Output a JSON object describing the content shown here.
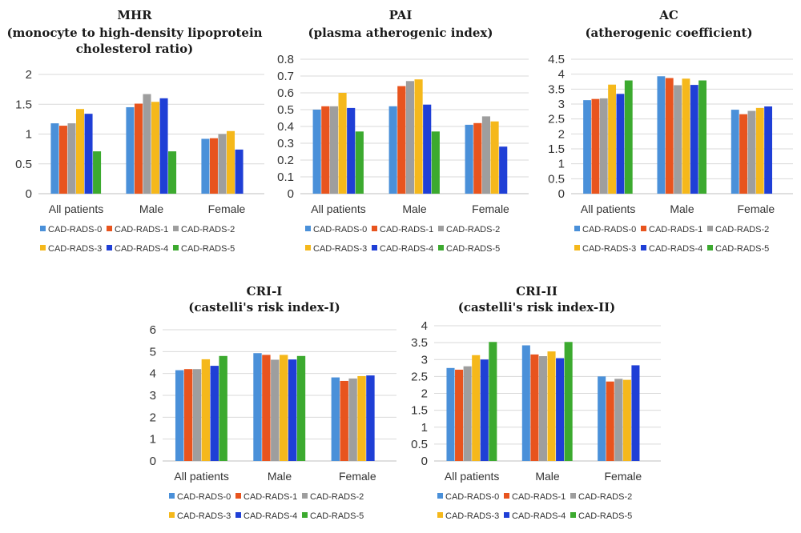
{
  "chart_data": [
    {
      "type": "bar",
      "title": "MHR",
      "subtitle": "(monocyte to high-density lipoprotein cholesterol ratio)",
      "categories": [
        "All patients",
        "Male",
        "Female"
      ],
      "ylim": [
        0,
        2
      ],
      "yticks": [
        "0",
        "0.5",
        "1",
        "1.5",
        "2"
      ],
      "grid": true,
      "legend_position": "bottom",
      "series": [
        {
          "name": "CAD-RADS-0",
          "color": "#4a90d9",
          "values": [
            1.18,
            1.45,
            0.92
          ]
        },
        {
          "name": "CAD-RADS-1",
          "color": "#e8541e",
          "values": [
            1.14,
            1.51,
            0.93
          ]
        },
        {
          "name": "CAD-RADS-2",
          "color": "#9e9e9e",
          "values": [
            1.18,
            1.67,
            1.0
          ]
        },
        {
          "name": "CAD-RADS-3",
          "color": "#f5b81b",
          "values": [
            1.42,
            1.54,
            1.05
          ]
        },
        {
          "name": "CAD-RADS-4",
          "color": "#1f3fd6",
          "values": [
            1.34,
            1.6,
            0.74
          ]
        },
        {
          "name": "CAD-RADS-5",
          "color": "#3caa2f",
          "values": [
            0.71,
            0.71,
            0.0
          ]
        }
      ]
    },
    {
      "type": "bar",
      "title": "PAI",
      "subtitle": "(plasma atherogenic index)",
      "categories": [
        "All patients",
        "Male",
        "Female"
      ],
      "ylim": [
        0,
        0.8
      ],
      "yticks": [
        "0",
        "0.1",
        "0.2",
        "0.3",
        "0.4",
        "0.5",
        "0.6",
        "0.7",
        "0.8"
      ],
      "grid": true,
      "legend_position": "bottom",
      "series": [
        {
          "name": "CAD-RADS-0",
          "color": "#4a90d9",
          "values": [
            0.5,
            0.52,
            0.41
          ]
        },
        {
          "name": "CAD-RADS-1",
          "color": "#e8541e",
          "values": [
            0.52,
            0.64,
            0.42
          ]
        },
        {
          "name": "CAD-RADS-2",
          "color": "#9e9e9e",
          "values": [
            0.52,
            0.67,
            0.46
          ]
        },
        {
          "name": "CAD-RADS-3",
          "color": "#f5b81b",
          "values": [
            0.6,
            0.68,
            0.43
          ]
        },
        {
          "name": "CAD-RADS-4",
          "color": "#1f3fd6",
          "values": [
            0.51,
            0.53,
            0.28
          ]
        },
        {
          "name": "CAD-RADS-5",
          "color": "#3caa2f",
          "values": [
            0.37,
            0.37,
            0.0
          ]
        }
      ]
    },
    {
      "type": "bar",
      "title": "AC",
      "subtitle": "(atherogenic coefficient)",
      "categories": [
        "All patients",
        "Male",
        "Female"
      ],
      "ylim": [
        0,
        4.5
      ],
      "yticks": [
        "0",
        "0.5",
        "1",
        "1.5",
        "2",
        "2.5",
        "3",
        "3.5",
        "4",
        "4.5"
      ],
      "grid": true,
      "legend_position": "bottom",
      "series": [
        {
          "name": "CAD-RADS-0",
          "color": "#4a90d9",
          "values": [
            3.13,
            3.93,
            2.81
          ]
        },
        {
          "name": "CAD-RADS-1",
          "color": "#e8541e",
          "values": [
            3.17,
            3.87,
            2.66
          ]
        },
        {
          "name": "CAD-RADS-2",
          "color": "#9e9e9e",
          "values": [
            3.19,
            3.63,
            2.77
          ]
        },
        {
          "name": "CAD-RADS-3",
          "color": "#f5b81b",
          "values": [
            3.65,
            3.85,
            2.87
          ]
        },
        {
          "name": "CAD-RADS-4",
          "color": "#1f3fd6",
          "values": [
            3.34,
            3.64,
            2.92
          ]
        },
        {
          "name": "CAD-RADS-5",
          "color": "#3caa2f",
          "values": [
            3.79,
            3.79,
            0.0
          ]
        }
      ]
    },
    {
      "type": "bar",
      "title": "CRI-I",
      "subtitle": "(castelli's risk index-I)",
      "categories": [
        "All patients",
        "Male",
        "Female"
      ],
      "ylim": [
        0,
        6
      ],
      "yticks": [
        "0",
        "1",
        "2",
        "3",
        "4",
        "5",
        "6"
      ],
      "grid": true,
      "legend_position": "bottom",
      "series": [
        {
          "name": "CAD-RADS-0",
          "color": "#4a90d9",
          "values": [
            4.15,
            4.93,
            3.82
          ]
        },
        {
          "name": "CAD-RADS-1",
          "color": "#e8541e",
          "values": [
            4.2,
            4.85,
            3.66
          ]
        },
        {
          "name": "CAD-RADS-2",
          "color": "#9e9e9e",
          "values": [
            4.2,
            4.63,
            3.77
          ]
        },
        {
          "name": "CAD-RADS-3",
          "color": "#f5b81b",
          "values": [
            4.65,
            4.85,
            3.88
          ]
        },
        {
          "name": "CAD-RADS-4",
          "color": "#1f3fd6",
          "values": [
            4.35,
            4.64,
            3.91
          ]
        },
        {
          "name": "CAD-RADS-5",
          "color": "#3caa2f",
          "values": [
            4.8,
            4.8,
            0.0
          ]
        }
      ]
    },
    {
      "type": "bar",
      "title": "CRI-II",
      "subtitle": "(castelli's risk index-II)",
      "categories": [
        "All patients",
        "Male",
        "Female"
      ],
      "ylim": [
        0,
        4
      ],
      "yticks": [
        "0",
        "0.5",
        "1",
        "1.5",
        "2",
        "2.5",
        "3",
        "3.5",
        "4"
      ],
      "grid": true,
      "legend_position": "bottom",
      "series": [
        {
          "name": "CAD-RADS-0",
          "color": "#4a90d9",
          "values": [
            2.75,
            3.42,
            2.5
          ]
        },
        {
          "name": "CAD-RADS-1",
          "color": "#e8541e",
          "values": [
            2.7,
            3.15,
            2.35
          ]
        },
        {
          "name": "CAD-RADS-2",
          "color": "#9e9e9e",
          "values": [
            2.8,
            3.1,
            2.43
          ]
        },
        {
          "name": "CAD-RADS-3",
          "color": "#f5b81b",
          "values": [
            3.13,
            3.24,
            2.4
          ]
        },
        {
          "name": "CAD-RADS-4",
          "color": "#1f3fd6",
          "values": [
            3.0,
            3.04,
            2.83
          ]
        },
        {
          "name": "CAD-RADS-5",
          "color": "#3caa2f",
          "values": [
            3.52,
            3.52,
            0.0
          ]
        }
      ]
    }
  ]
}
